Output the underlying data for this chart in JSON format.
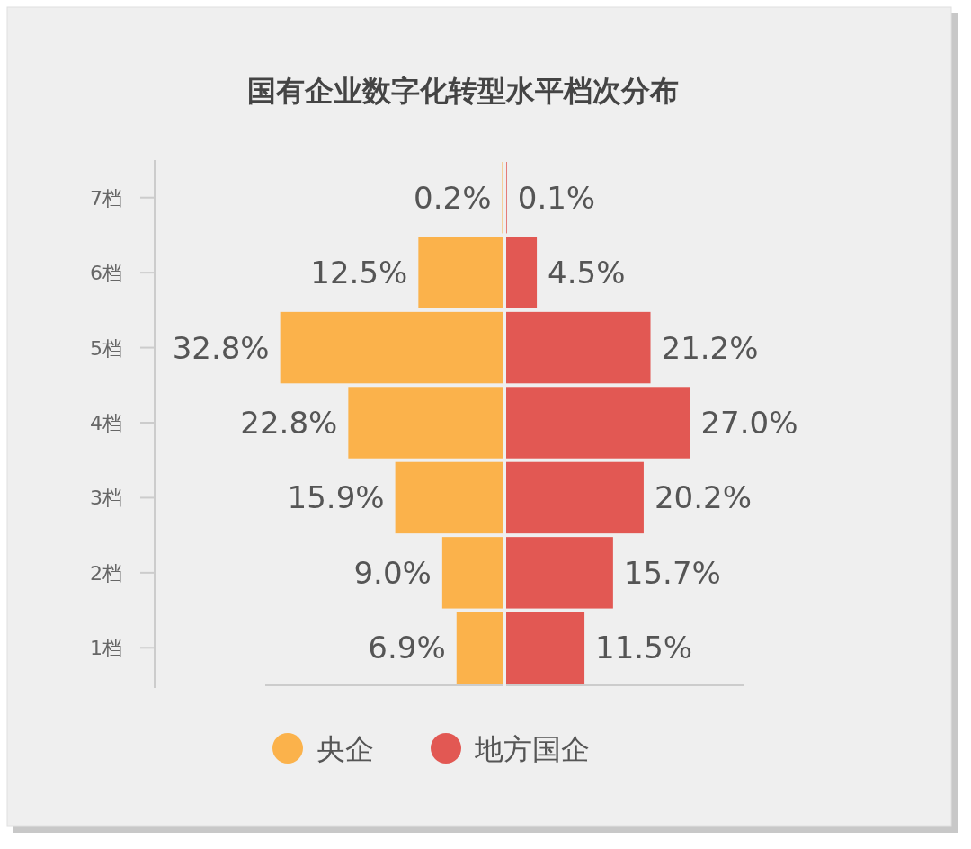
{
  "chart_data": [
    {
      "type": "bar",
      "orientation": "horizontal",
      "title": "国有企业数字化转型水平档次分布",
      "categories": [
        "7档",
        "6档",
        "5档",
        "4档",
        "3档",
        "2档",
        "1档"
      ],
      "xlim": [
        35,
        0
      ],
      "legend": "bottom",
      "series": [
        {
          "name": "央企",
          "color": "#fbb24b",
          "values": [
            0.2,
            12.5,
            32.8,
            22.8,
            15.9,
            9.0,
            6.9
          ],
          "value_labels": [
            "0.2%",
            "12.5%",
            "32.8%",
            "22.8%",
            "15.9%",
            "9.0%",
            "6.9%"
          ]
        }
      ]
    },
    {
      "type": "bar",
      "orientation": "horizontal",
      "categories": [
        null,
        null,
        null,
        null,
        null,
        null,
        null
      ],
      "xlim": [
        0,
        35
      ],
      "legend": "bottom",
      "tick_labels": false,
      "series": [
        {
          "name": "地方国企",
          "color": "#e25853",
          "values": [
            0.1,
            4.5,
            21.2,
            27.0,
            20.2,
            15.7,
            11.5
          ],
          "value_labels": [
            "0.1%",
            "4.5%",
            "21.2%",
            "27.0%",
            "20.2%",
            "15.7%",
            "11.5%"
          ]
        }
      ]
    }
  ]
}
